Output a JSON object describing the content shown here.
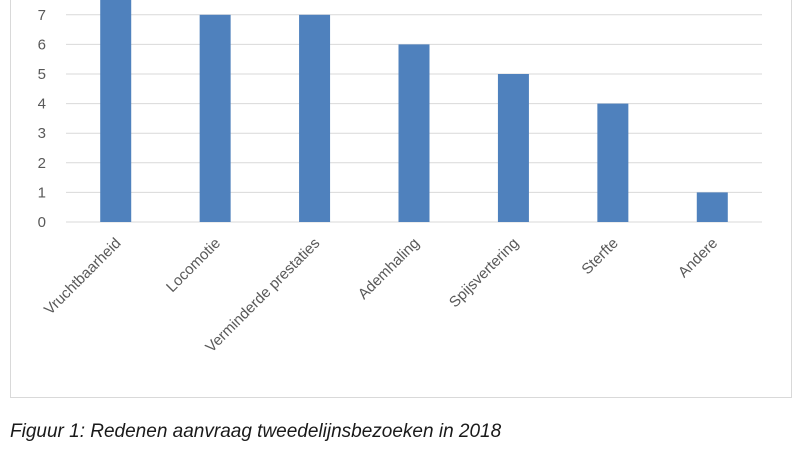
{
  "caption": "Figuur 1: Redenen aanvraag tweedelijnsbezoeken in 2018",
  "chart_data": {
    "type": "bar",
    "categories": [
      "Vruchtbaarheid",
      "Locomotie",
      "Verminderde prestaties",
      "Ademhaling",
      "Spijsvertering",
      "Sterfte",
      "Andere"
    ],
    "values": [
      8,
      7,
      7,
      6,
      5,
      4,
      1
    ],
    "y_ticks": [
      0,
      1,
      2,
      3,
      4,
      5,
      6,
      7
    ],
    "ylim": [
      0,
      8
    ],
    "grid": true,
    "bar_color": "#4f81bd",
    "grid_color": "#d9d9d9"
  }
}
